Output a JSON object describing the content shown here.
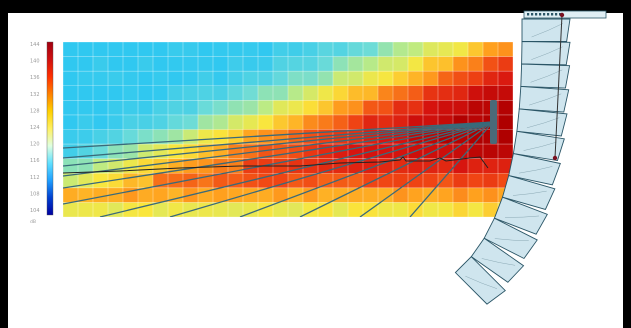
{
  "colorbar": {
    "tick_labels": [
      "144",
      "140",
      "136",
      "132",
      "128",
      "124",
      "120",
      "116",
      "112",
      "108",
      "104"
    ],
    "unit": "dB",
    "gradient_colors": [
      "#a00010",
      "#d01010",
      "#ff3000",
      "#ff8000",
      "#ffd000",
      "#fff060",
      "#e0ffe0",
      "#60e0ff",
      "#20a0ff",
      "#0040d0",
      "#0000a0"
    ]
  },
  "heatmap": {
    "columns": 30,
    "rows": 12,
    "hot_color": "#c40000",
    "cool_color": "#30c8f0"
  },
  "array": {
    "cabinet_count": 12,
    "splay_angles_deg": [
      0,
      1,
      1,
      2,
      2,
      3,
      3,
      4,
      5,
      6,
      8,
      10
    ],
    "fill_color": "#cfe5ee",
    "stroke_color": "#2a5566",
    "rigging_color": "#7a1020"
  },
  "ray_color": "#3a6a7a"
}
